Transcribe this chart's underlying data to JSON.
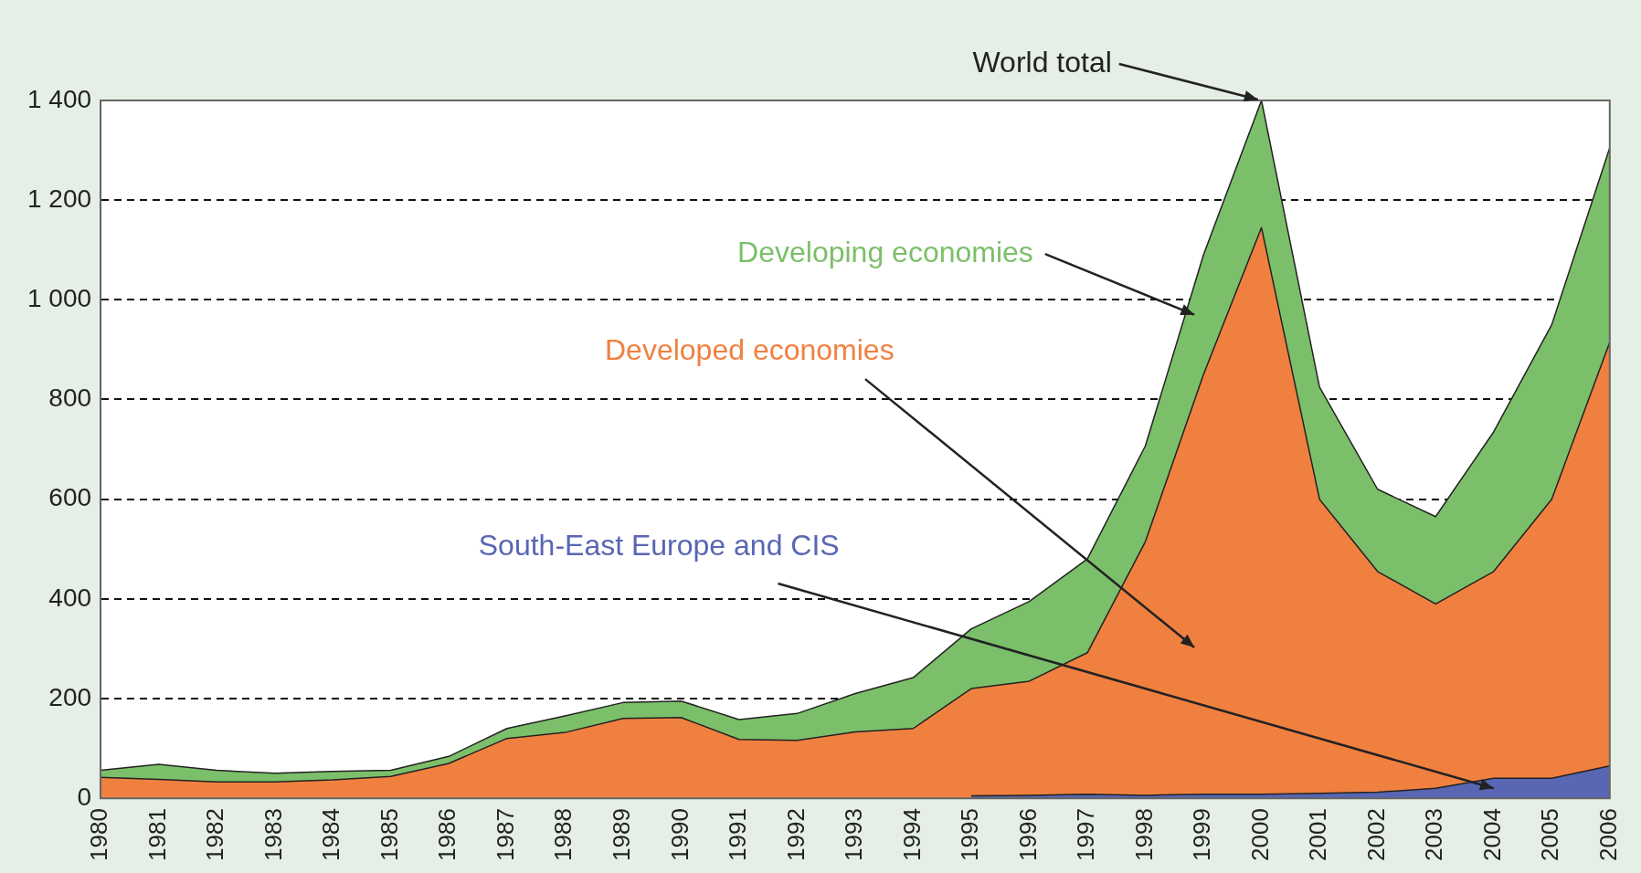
{
  "chart_data": {
    "type": "area",
    "stacked": true,
    "categories": [
      "1980",
      "1981",
      "1982",
      "1983",
      "1984",
      "1985",
      "1986",
      "1987",
      "1988",
      "1989",
      "1990",
      "1991",
      "1992",
      "1993",
      "1994",
      "1995",
      "1996",
      "1997",
      "1998",
      "1999",
      "2000",
      "2001",
      "2002",
      "2003",
      "2004",
      "2005",
      "2006"
    ],
    "series": [
      {
        "name": "South-East Europe and CIS",
        "color": "#5866b4",
        "values": [
          null,
          null,
          null,
          null,
          null,
          null,
          null,
          null,
          null,
          null,
          null,
          null,
          null,
          null,
          null,
          5,
          6,
          8,
          6,
          8,
          8,
          10,
          12,
          20,
          40,
          40,
          65
        ]
      },
      {
        "name": "Developed economies",
        "color": "#f08040",
        "values": [
          42,
          38,
          33,
          33,
          37,
          44,
          70,
          120,
          132,
          160,
          162,
          118,
          116,
          133,
          140,
          215,
          229,
          284,
          509,
          842,
          1137,
          590,
          443,
          370,
          415,
          560,
          850
        ]
      },
      {
        "name": "Developing economies",
        "color": "#7cbf6a",
        "values": [
          14,
          30,
          23,
          17,
          17,
          12,
          14,
          20,
          33,
          32,
          33,
          40,
          54,
          77,
          102,
          120,
          160,
          188,
          192,
          240,
          255,
          225,
          165,
          175,
          280,
          350,
          390
        ]
      }
    ],
    "ylim": [
      0,
      1400
    ],
    "yticks": [
      0,
      200,
      400,
      600,
      800,
      {
        "value": 1000,
        "label": "1 000"
      },
      {
        "value": 1200,
        "label": "1 200"
      },
      {
        "value": 1400,
        "label": "1 400"
      }
    ],
    "grid": "y",
    "line_style": "dashed",
    "legend": false,
    "annotations": [
      {
        "text": "World total",
        "x": "2000",
        "y": 1400
      }
    ]
  }
}
